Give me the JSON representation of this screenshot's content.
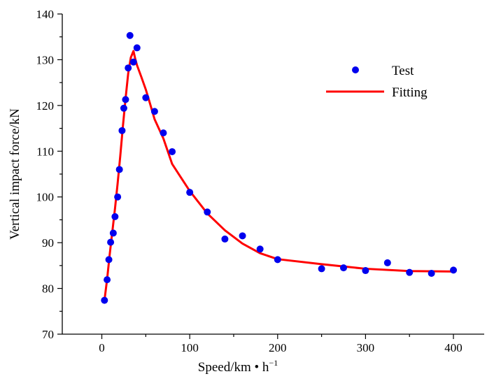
{
  "chart_data": {
    "type": "scatter",
    "xlabel": "Speed/km • h",
    "xlabel_sup": "−1",
    "ylabel": "Vertical impact force/kN",
    "xlim": [
      -45,
      435
    ],
    "ylim": [
      70,
      140
    ],
    "x_ticks": [
      0,
      100,
      200,
      300,
      400
    ],
    "y_ticks": [
      70,
      80,
      90,
      100,
      110,
      120,
      130,
      140
    ],
    "grid": false,
    "legend_position": "top-right",
    "series": [
      {
        "name": "Test",
        "kind": "scatter",
        "color": "#0000ee",
        "x": [
          3,
          6,
          8,
          10,
          13,
          15,
          18,
          20,
          23,
          25,
          27,
          30,
          32,
          36,
          40,
          50,
          60,
          70,
          80,
          100,
          120,
          140,
          160,
          180,
          200,
          250,
          275,
          300,
          325,
          350,
          375,
          400
        ],
        "y": [
          77.4,
          81.9,
          86.3,
          90.1,
          92.1,
          95.7,
          100,
          106,
          114.5,
          119.4,
          121.3,
          128.2,
          135.3,
          129.5,
          132.6,
          121.7,
          118.7,
          114,
          109.9,
          101,
          96.7,
          90.8,
          91.5,
          88.6,
          86.3,
          84.3,
          84.5,
          83.9,
          85.6,
          83.5,
          83.3,
          84
        ]
      },
      {
        "name": "Fitting",
        "kind": "line",
        "color": "#ff0000",
        "x": [
          3,
          6,
          9,
          12,
          15,
          18,
          21,
          24,
          27,
          30,
          33,
          36,
          38,
          40,
          45,
          50,
          55,
          60,
          70,
          80,
          100,
          120,
          140,
          160,
          180,
          200,
          250,
          300,
          350,
          400
        ],
        "y": [
          77.4,
          82,
          87.5,
          92.5,
          97.5,
          103,
          109,
          115.5,
          121.5,
          127,
          130.5,
          131.9,
          130.2,
          128.8,
          126.2,
          123.5,
          120.3,
          117,
          112.8,
          107.2,
          101.3,
          96.4,
          92.7,
          89.8,
          87.7,
          86.4,
          85.3,
          84.3,
          83.8,
          83.7
        ]
      }
    ]
  }
}
